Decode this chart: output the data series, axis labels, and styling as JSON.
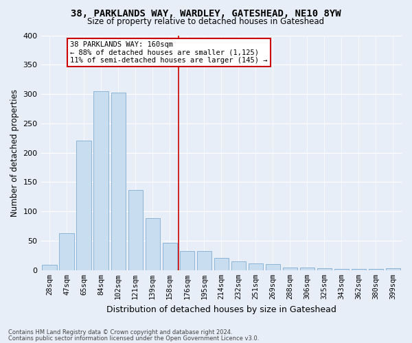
{
  "title1": "38, PARKLANDS WAY, WARDLEY, GATESHEAD, NE10 8YW",
  "title2": "Size of property relative to detached houses in Gateshead",
  "xlabel": "Distribution of detached houses by size in Gateshead",
  "ylabel": "Number of detached properties",
  "categories": [
    "28sqm",
    "47sqm",
    "65sqm",
    "84sqm",
    "102sqm",
    "121sqm",
    "139sqm",
    "158sqm",
    "176sqm",
    "195sqm",
    "214sqm",
    "232sqm",
    "251sqm",
    "269sqm",
    "288sqm",
    "306sqm",
    "325sqm",
    "343sqm",
    "362sqm",
    "380sqm",
    "399sqm"
  ],
  "values": [
    9,
    63,
    221,
    305,
    303,
    137,
    89,
    47,
    32,
    32,
    21,
    15,
    11,
    10,
    4,
    5,
    3,
    2,
    2,
    2,
    3
  ],
  "bar_color": "#c9ddf0",
  "bar_edge_color": "#8ab4d8",
  "bg_color": "#e8eef8",
  "grid_color": "#ffffff",
  "vline_x": 7.5,
  "vline_color": "#cc0000",
  "annotation_title": "38 PARKLANDS WAY: 160sqm",
  "annotation_line1": "← 88% of detached houses are smaller (1,125)",
  "annotation_line2": "11% of semi-detached houses are larger (145) →",
  "annotation_box_color": "#ffffff",
  "annotation_box_edge_color": "#cc0000",
  "footer1": "Contains HM Land Registry data © Crown copyright and database right 2024.",
  "footer2": "Contains public sector information licensed under the Open Government Licence v3.0.",
  "ylim": [
    0,
    400
  ],
  "yticks": [
    0,
    50,
    100,
    150,
    200,
    250,
    300,
    350,
    400
  ]
}
